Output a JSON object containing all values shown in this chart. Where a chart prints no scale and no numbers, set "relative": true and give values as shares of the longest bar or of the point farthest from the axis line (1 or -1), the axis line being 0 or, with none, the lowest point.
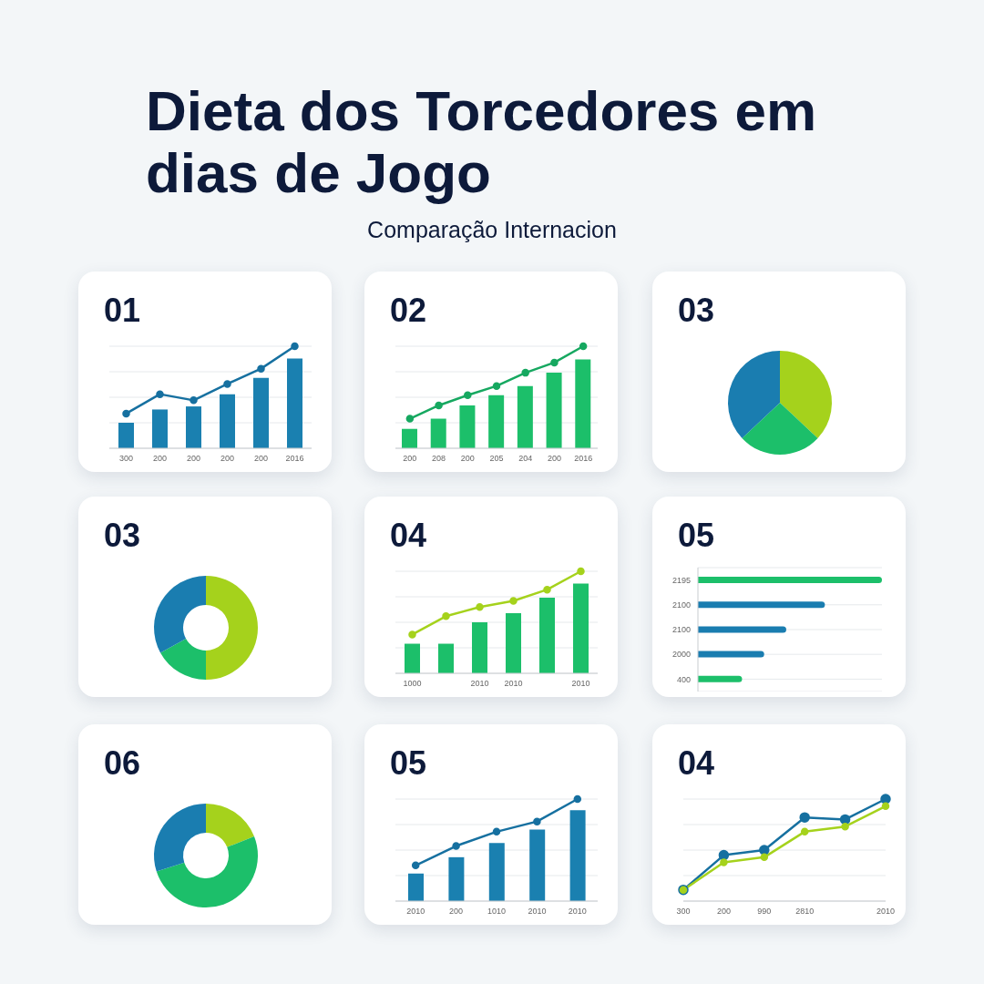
{
  "chart_data": [
    {
      "type": "other",
      "title": "Dieta dos Torcedores em dias de Jogo",
      "subtitle": "Comparação Internacion"
    },
    {
      "type": "bar",
      "title": "01",
      "relative": true,
      "categories": [
        "300",
        "200",
        "200",
        "200",
        "200",
        "2016"
      ],
      "grid": "y",
      "marker": "circle",
      "series": [
        {
          "type": "bar",
          "color": "#1a80b0",
          "values": [
            0.25,
            0.38,
            0.41,
            0.53,
            0.69,
            0.88
          ]
        },
        {
          "type": "line",
          "color": "#1670a0",
          "values": [
            0.34,
            0.53,
            0.47,
            0.63,
            0.78,
            1
          ]
        }
      ]
    },
    {
      "type": "bar",
      "title": "02",
      "relative": true,
      "categories": [
        "200",
        "208",
        "200",
        "205",
        "204",
        "200",
        "2016"
      ],
      "grid": "y",
      "marker": "circle",
      "series": [
        {
          "type": "bar",
          "color": "#1cbf6a",
          "values": [
            0.19,
            0.29,
            0.42,
            0.52,
            0.61,
            0.74,
            0.87
          ]
        },
        {
          "type": "line",
          "color": "#16a860",
          "values": [
            0.29,
            0.42,
            0.52,
            0.61,
            0.74,
            0.84,
            1
          ]
        }
      ]
    },
    {
      "type": "pie",
      "title": "03",
      "values": [
        37,
        26,
        37
      ],
      "colors": [
        "#a5d21c",
        "#1cbf6a",
        "#1a7db0"
      ]
    },
    {
      "type": "donut",
      "title": "03",
      "values": [
        50,
        17,
        33
      ],
      "colors": [
        "#a5d21c",
        "#1cbf6a",
        "#1a7db0"
      ]
    },
    {
      "type": "bar",
      "title": "04",
      "relative": true,
      "categories": [
        "1000",
        null,
        "2010",
        "2010",
        null,
        "2010"
      ],
      "grid": "y",
      "marker": "circle",
      "series": [
        {
          "type": "bar",
          "color": "#1cbf6a",
          "values": [
            0.29,
            0.29,
            0.5,
            0.59,
            0.74,
            0.88
          ]
        },
        {
          "type": "line",
          "color": "#a5d21c",
          "values": [
            0.38,
            0.56,
            0.65,
            0.71,
            0.82,
            1
          ]
        }
      ]
    },
    {
      "type": "bar",
      "orientation": "horizontal",
      "title": "05",
      "relative": true,
      "categories": [
        "2195",
        "2100",
        "2100",
        "2000",
        "400"
      ],
      "values": [
        1,
        0.69,
        0.48,
        0.36,
        0.24
      ],
      "colors": [
        "#1cbf6a",
        "#1a7db0",
        "#1a7db0",
        "#1a7db0",
        "#1cbf6a"
      ],
      "grid": "y"
    },
    {
      "type": "donut",
      "title": "06",
      "values": [
        19,
        51,
        30
      ],
      "colors": [
        "#a5d21c",
        "#1cbf6a",
        "#1a7db0"
      ]
    },
    {
      "type": "bar",
      "title": "05",
      "relative": true,
      "categories": [
        "2010",
        "200",
        "1010",
        "2010",
        "2010"
      ],
      "grid": "y",
      "marker": "circle",
      "series": [
        {
          "type": "bar",
          "color": "#1a80b0",
          "values": [
            0.27,
            0.43,
            0.57,
            0.7,
            0.89
          ]
        },
        {
          "type": "line",
          "color": "#1670a0",
          "values": [
            0.35,
            0.54,
            0.68,
            0.78,
            1
          ]
        }
      ]
    },
    {
      "type": "line",
      "title": "04",
      "relative": true,
      "categories": [
        "300",
        "200",
        "990",
        "2810",
        null,
        "2010"
      ],
      "grid": "y",
      "marker": "circle",
      "series": [
        {
          "color": "#1670a0",
          "values": [
            0.11,
            0.45,
            0.5,
            0.82,
            0.8,
            1
          ]
        },
        {
          "color": "#a5d21c",
          "values": [
            0.11,
            0.38,
            0.43,
            0.68,
            0.73,
            0.93
          ]
        }
      ]
    }
  ]
}
